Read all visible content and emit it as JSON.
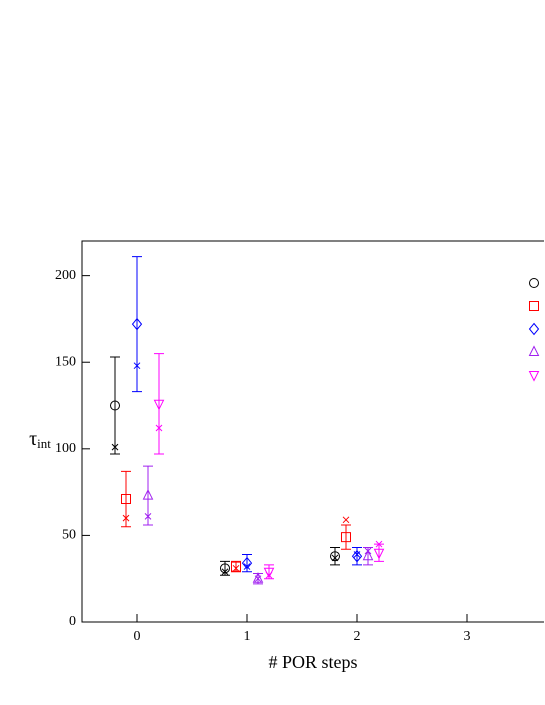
{
  "chart_data": {
    "type": "scatter",
    "x_label": "# POR steps",
    "y_label": {
      "symbol": "τ",
      "subscript": "int"
    },
    "xlim": [
      -0.5,
      3.7
    ],
    "ylim": [
      0,
      220
    ],
    "xticks": [
      0,
      1,
      2,
      3
    ],
    "yticks": [
      0,
      50,
      100,
      150,
      200
    ],
    "series": [
      {
        "marker": "circle",
        "color": "#000000",
        "x": [
          -0.2,
          0.8,
          1.8
        ],
        "values": [
          125,
          31,
          38
        ],
        "errors": [
          28,
          4,
          5
        ],
        "cross_values": [
          101,
          29,
          37
        ]
      },
      {
        "marker": "square",
        "color": "#ff0000",
        "x": [
          -0.1,
          0.9,
          1.9
        ],
        "values": [
          71,
          32,
          49
        ],
        "errors": [
          16,
          3,
          7
        ],
        "cross_values": [
          60,
          31,
          59
        ]
      },
      {
        "marker": "diamond",
        "color": "#0000ff",
        "x": [
          0,
          1,
          2
        ],
        "values": [
          172,
          34,
          38
        ],
        "errors": [
          39,
          5,
          5
        ],
        "cross_values": [
          148,
          32,
          39
        ]
      },
      {
        "marker": "triangle-up",
        "color": "#a020f0",
        "x": [
          0.1,
          1.1,
          2.1
        ],
        "values": [
          73,
          25,
          38
        ],
        "errors": [
          17,
          3,
          5
        ],
        "cross_values": [
          61,
          25,
          41
        ]
      },
      {
        "marker": "triangle-down",
        "color": "#ff00ff",
        "x": [
          0.2,
          1.2,
          2.2
        ],
        "values": [
          126,
          29,
          40
        ],
        "errors": [
          29,
          4,
          5
        ],
        "cross_values": [
          112,
          27,
          45
        ]
      }
    ]
  }
}
